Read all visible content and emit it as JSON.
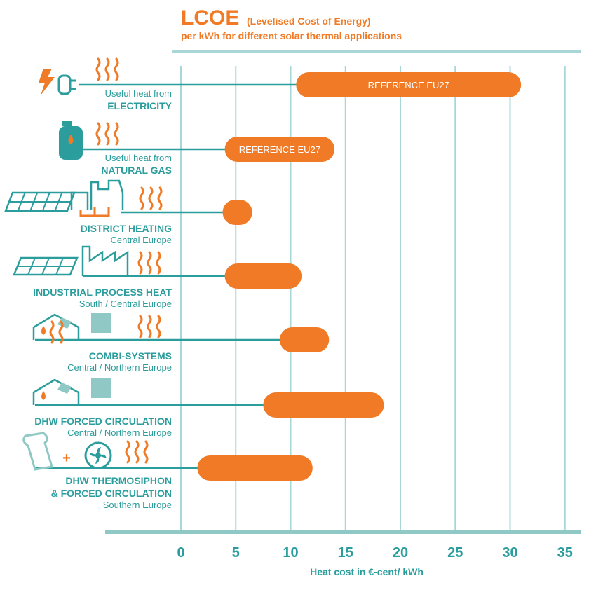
{
  "header": {
    "title": "LCOE",
    "title_note": "(Levelised Cost of Energy)",
    "subtitle": "per kWh for different solar thermal applications"
  },
  "colors": {
    "teal": "#2a9d9c",
    "orange": "#f07a25",
    "grid": "#a9d7d8",
    "teal_light": "#8fc8c4",
    "white": "#ffffff"
  },
  "chart_data": {
    "type": "bar",
    "orientation": "horizontal-range",
    "xlabel": "Heat cost in €-cent/ kWh",
    "xlim": [
      0,
      35
    ],
    "xticks": [
      0,
      5,
      10,
      15,
      20,
      25,
      30,
      35
    ],
    "grid": true,
    "categories": [
      {
        "id": "electricity",
        "line1": "Useful heat from",
        "line2": "ELECTRICITY",
        "icon": "plug-icon",
        "min": 10.5,
        "max": 31,
        "label": "REFERENCE EU27"
      },
      {
        "id": "natural-gas",
        "line1": "Useful heat from",
        "line2": "NATURAL GAS",
        "icon": "gas-cylinder-icon",
        "min": 4,
        "max": 14,
        "label": "REFERENCE EU27"
      },
      {
        "id": "district-heating",
        "line1": "DISTRICT HEATING",
        "line2": "Central Europe",
        "icon": "district-heating-icon",
        "min": 3.8,
        "max": 6.5,
        "label": ""
      },
      {
        "id": "industrial",
        "line1": "INDUSTRIAL PROCESS HEAT",
        "line2": "South / Central Europe",
        "icon": "factory-icon",
        "min": 4,
        "max": 11,
        "label": ""
      },
      {
        "id": "combi",
        "line1": "COMBI-SYSTEMS",
        "line2": "Central / Northern Europe",
        "icon": "house-icon",
        "min": 9,
        "max": 13.5,
        "label": ""
      },
      {
        "id": "dhw-forced",
        "line1": "DHW FORCED CIRCULATION",
        "line2": "Central / Northern Europe",
        "icon": "house-icon",
        "min": 7.5,
        "max": 18.5,
        "label": ""
      },
      {
        "id": "dhw-thermosiphon",
        "line1": "DHW THERMOSIPHON",
        "line1b": "& FORCED CIRCULATION",
        "line2": "Southern Europe",
        "icon": "thermosiphon-icon",
        "min": 1.5,
        "max": 12,
        "label": ""
      }
    ]
  }
}
